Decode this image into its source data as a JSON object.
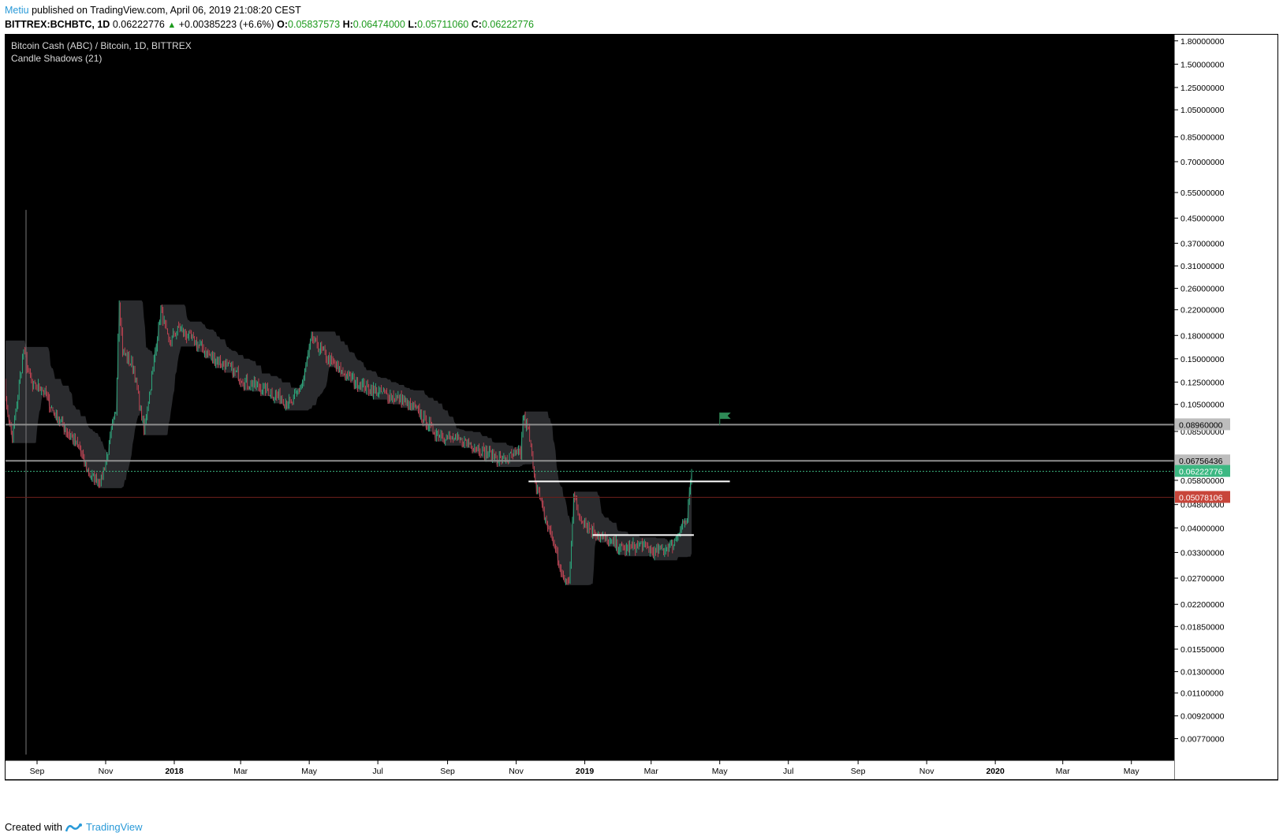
{
  "header": {
    "author": "Metiu",
    "published_text": "published on TradingView.com, April 06, 2019 21:08:20 CEST",
    "symbol": "BITTREX:BCHBTC, 1D",
    "price": "0.06222776",
    "change": "+0.00385223 (+6.6%)",
    "o_label": "O:",
    "o_value": "0.05837573",
    "h_label": "H:",
    "h_value": "0.06474000",
    "l_label": "L:",
    "l_value": "0.05711060",
    "c_label": "C:",
    "c_value": "0.06222776"
  },
  "legend": {
    "title": "Bitcoin Cash (ABC) / Bitcoin, 1D, BITTREX",
    "indicator": "Candle Shadows (21)"
  },
  "footer": {
    "created_with": "Created with",
    "brand": "TradingView"
  },
  "colors": {
    "background": "#000000",
    "candle_up": "#2ec58f",
    "candle_down": "#e0485a",
    "shadow_band": "#2a2b2e",
    "current_price": "#3cb882",
    "low_marker": "#c8453a",
    "level_line": "#8e8e8e",
    "drawing_line": "#ffffff",
    "flag": "#2e8b57"
  },
  "chart_data": {
    "type": "candlestick",
    "scale": "log",
    "ylim": [
      0.0065,
      1.9
    ],
    "y_ticks": [
      "1.80000000",
      "1.50000000",
      "1.25000000",
      "1.05000000",
      "0.85000000",
      "0.70000000",
      "0.55000000",
      "0.45000000",
      "0.37000000",
      "0.31000000",
      "0.26000000",
      "0.22000000",
      "0.18000000",
      "0.15000000",
      "0.12500000",
      "0.10500000",
      "0.08500000",
      "0.05800000",
      "0.04800000",
      "0.04000000",
      "0.03300000",
      "0.02700000",
      "0.02200000",
      "0.01850000",
      "0.01550000",
      "0.01300000",
      "0.01100000",
      "0.00920000",
      "0.00770000"
    ],
    "x_ticks": [
      {
        "label": "Sep",
        "month": "2017-09",
        "bold": false
      },
      {
        "label": "Nov",
        "month": "2017-11",
        "bold": false
      },
      {
        "label": "2018",
        "month": "2018-01",
        "bold": true
      },
      {
        "label": "Mar",
        "month": "2018-03",
        "bold": false
      },
      {
        "label": "May",
        "month": "2018-05",
        "bold": false
      },
      {
        "label": "Jul",
        "month": "2018-07",
        "bold": false
      },
      {
        "label": "Sep",
        "month": "2018-09",
        "bold": false
      },
      {
        "label": "Nov",
        "month": "2018-11",
        "bold": false
      },
      {
        "label": "2019",
        "month": "2019-01",
        "bold": true
      },
      {
        "label": "Mar",
        "month": "2019-03",
        "bold": false
      },
      {
        "label": "May",
        "month": "2019-05",
        "bold": false
      },
      {
        "label": "Jul",
        "month": "2019-07",
        "bold": false
      },
      {
        "label": "Sep",
        "month": "2019-09",
        "bold": false
      },
      {
        "label": "Nov",
        "month": "2019-11",
        "bold": false
      },
      {
        "label": "2020",
        "month": "2020-01",
        "bold": true
      },
      {
        "label": "Mar",
        "month": "2020-03",
        "bold": false
      },
      {
        "label": "May",
        "month": "2020-05",
        "bold": false
      }
    ],
    "price_path": [
      [
        "2017-08-01",
        0.17
      ],
      [
        "2017-08-05",
        0.1
      ],
      [
        "2017-08-10",
        0.08
      ],
      [
        "2017-08-20",
        0.16
      ],
      [
        "2017-08-28",
        0.12
      ],
      [
        "2017-09-05",
        0.12
      ],
      [
        "2017-09-15",
        0.1
      ],
      [
        "2017-09-28",
        0.085
      ],
      [
        "2017-10-08",
        0.075
      ],
      [
        "2017-10-18",
        0.06
      ],
      [
        "2017-10-28",
        0.058
      ],
      [
        "2017-11-02",
        0.07
      ],
      [
        "2017-11-10",
        0.1
      ],
      [
        "2017-11-13",
        0.24
      ],
      [
        "2017-11-16",
        0.16
      ],
      [
        "2017-11-26",
        0.14
      ],
      [
        "2017-12-05",
        0.085
      ],
      [
        "2017-12-12",
        0.13
      ],
      [
        "2017-12-20",
        0.22
      ],
      [
        "2017-12-27",
        0.17
      ],
      [
        "2018-01-05",
        0.19
      ],
      [
        "2018-01-20",
        0.17
      ],
      [
        "2018-02-05",
        0.15
      ],
      [
        "2018-02-20",
        0.14
      ],
      [
        "2018-03-05",
        0.125
      ],
      [
        "2018-03-20",
        0.12
      ],
      [
        "2018-04-05",
        0.11
      ],
      [
        "2018-04-15",
        0.105
      ],
      [
        "2018-04-25",
        0.125
      ],
      [
        "2018-05-03",
        0.175
      ],
      [
        "2018-05-15",
        0.155
      ],
      [
        "2018-05-25",
        0.14
      ],
      [
        "2018-06-05",
        0.13
      ],
      [
        "2018-06-20",
        0.12
      ],
      [
        "2018-07-05",
        0.115
      ],
      [
        "2018-07-20",
        0.11
      ],
      [
        "2018-08-05",
        0.1
      ],
      [
        "2018-08-20",
        0.085
      ],
      [
        "2018-09-05",
        0.08
      ],
      [
        "2018-09-20",
        0.078
      ],
      [
        "2018-10-05",
        0.072
      ],
      [
        "2018-10-20",
        0.068
      ],
      [
        "2018-11-05",
        0.072
      ],
      [
        "2018-11-07",
        0.095
      ],
      [
        "2018-11-12",
        0.085
      ],
      [
        "2018-11-18",
        0.058
      ],
      [
        "2018-11-25",
        0.045
      ],
      [
        "2018-12-05",
        0.035
      ],
      [
        "2018-12-12",
        0.027
      ],
      [
        "2018-12-18",
        0.026
      ],
      [
        "2018-12-22",
        0.052
      ],
      [
        "2018-12-26",
        0.045
      ],
      [
        "2019-01-05",
        0.04
      ],
      [
        "2019-01-20",
        0.036
      ],
      [
        "2019-02-05",
        0.034
      ],
      [
        "2019-02-20",
        0.035
      ],
      [
        "2019-03-05",
        0.033
      ],
      [
        "2019-03-20",
        0.035
      ],
      [
        "2019-03-28",
        0.041
      ],
      [
        "2019-04-02",
        0.042
      ],
      [
        "2019-04-04",
        0.052
      ],
      [
        "2019-04-06",
        0.06222776
      ]
    ],
    "levels": [
      {
        "price": 0.0896,
        "label": "0.08960000",
        "style": "gray"
      },
      {
        "price": 0.06756436,
        "label": "0.06756436",
        "style": "gray"
      },
      {
        "price": 0.06222776,
        "label": "0.06222776",
        "style": "green"
      },
      {
        "price": 0.05078106,
        "label": "0.05078106",
        "style": "red"
      }
    ],
    "drawings": [
      {
        "start": "2018-11-12",
        "end": "2019-05-10",
        "price": 0.0575
      },
      {
        "start": "2019-01-08",
        "end": "2019-04-08",
        "price": 0.0378
      }
    ],
    "flag": {
      "date": "2019-05-01",
      "price": 0.0985
    }
  }
}
